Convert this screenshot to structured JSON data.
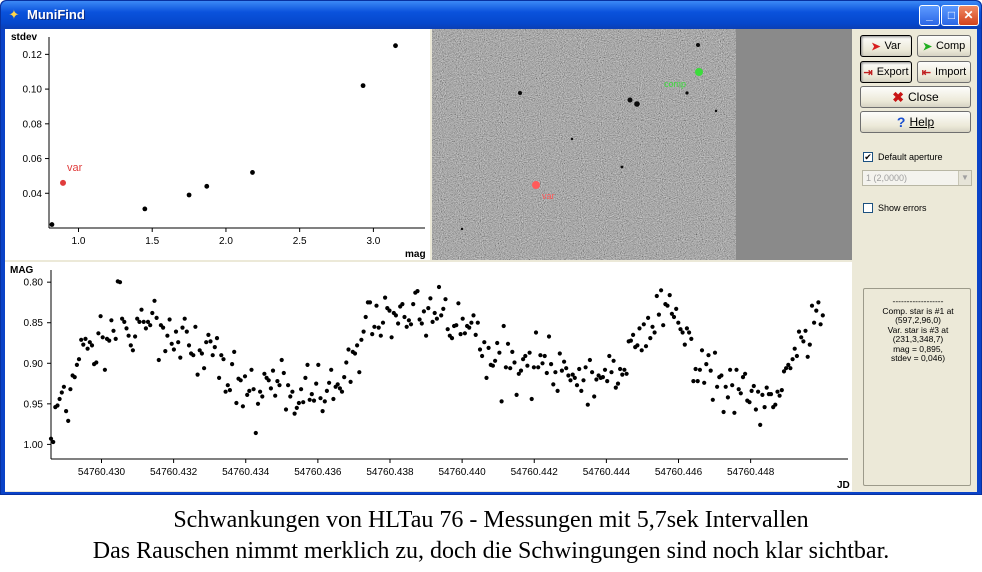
{
  "window": {
    "title": "MuniFind",
    "controls": [
      "minimize",
      "maximize",
      "close"
    ]
  },
  "scatter": {
    "ylabel": "stdev",
    "xlabel": "mag",
    "var_label": "var",
    "var_color": "#e03c3c"
  },
  "image": {
    "var_label": "var",
    "comp_label": "comp",
    "var_color": "#ff5a5a",
    "comp_color": "#3cdc3c"
  },
  "lightcurve": {
    "ylabel": "MAG",
    "xlabel": "JD"
  },
  "buttons": {
    "var": "Var",
    "comp": "Comp",
    "export": "Export",
    "import": "Import",
    "close": "Close",
    "help": "Help"
  },
  "options": {
    "default_aperture_label": "Default aperture",
    "default_aperture_checked": true,
    "aperture_value": "1 (2,0000)",
    "show_errors_label": "Show errors",
    "show_errors_checked": false
  },
  "info": {
    "text": "------------------\nComp. star is #1 at\n(597,2,96,0)\nVar. star is #3 at\n(231,3,348,7)\nmag = 0,895,\nstdev = 0,046)"
  },
  "caption": {
    "line1": "Schwankungen von HLTau 76 - Messungen mit 5,7sek Intervallen",
    "line2": "Das Rauschen nimmt merklich zu, doch die Schwingungen sind noch klar sichtbar."
  },
  "chart_data": [
    {
      "type": "scatter",
      "xlabel": "mag",
      "ylabel": "stdev",
      "x_ticks": [
        "1.0",
        "1.5",
        "2.0",
        "2.5",
        "3.0"
      ],
      "y_ticks": [
        "0.04",
        "0.06",
        "0.08",
        "0.10",
        "0.12"
      ],
      "xlim": [
        0.8,
        3.35
      ],
      "ylim": [
        0.02,
        0.13
      ],
      "points": [
        {
          "x": 0.82,
          "y": 0.022
        },
        {
          "x": 0.895,
          "y": 0.046,
          "label": "var"
        },
        {
          "x": 1.45,
          "y": 0.031
        },
        {
          "x": 1.75,
          "y": 0.039
        },
        {
          "x": 1.87,
          "y": 0.044
        },
        {
          "x": 2.18,
          "y": 0.052
        },
        {
          "x": 2.93,
          "y": 0.102
        },
        {
          "x": 3.15,
          "y": 0.125
        }
      ]
    },
    {
      "type": "scatter",
      "xlabel": "JD",
      "ylabel": "MAG",
      "x_ticks": [
        "54760.430",
        "54760.432",
        "54760.434",
        "54760.436",
        "54760.438",
        "54760.440",
        "54760.442",
        "54760.444",
        "54760.446",
        "54760.448"
      ],
      "y_ticks": [
        "0.80",
        "0.85",
        "0.90",
        "0.95",
        "1.00"
      ],
      "xlim": [
        54760.4286,
        54760.4507
      ],
      "ylim": [
        0.785,
        1.018
      ],
      "y_inverted": true,
      "jd_start": 54760.4286,
      "jd_end": 54760.45,
      "mag_series": [
        0.993,
        0.997,
        0.954,
        0.952,
        0.944,
        0.936,
        0.929,
        0.959,
        0.971,
        0.932,
        0.915,
        0.917,
        0.902,
        0.895,
        0.871,
        0.877,
        0.87,
        0.882,
        0.874,
        0.878,
        0.901,
        0.899,
        0.863,
        0.842,
        0.868,
        0.908,
        0.87,
        0.872,
        0.847,
        0.86,
        0.87,
        0.799,
        0.8,
        0.845,
        0.849,
        0.857,
        0.866,
        0.878,
        0.884,
        0.867,
        0.845,
        0.849,
        0.834,
        0.849,
        0.857,
        0.849,
        0.853,
        0.838,
        0.823,
        0.844,
        0.896,
        0.853,
        0.856,
        0.885,
        0.866,
        0.846,
        0.876,
        0.883,
        0.861,
        0.874,
        0.893,
        0.856,
        0.845,
        0.861,
        0.878,
        0.888,
        0.89,
        0.855,
        0.914,
        0.884,
        0.888,
        0.906,
        0.874,
        0.865,
        0.873,
        0.89,
        0.88,
        0.869,
        0.918,
        0.89,
        0.895,
        0.935,
        0.927,
        0.933,
        0.901,
        0.886,
        0.949,
        0.919,
        0.921,
        0.953,
        0.916,
        0.939,
        0.934,
        0.908,
        0.932,
        0.986,
        0.95,
        0.935,
        0.941,
        0.913,
        0.918,
        0.921,
        0.931,
        0.909,
        0.94,
        0.922,
        0.927,
        0.896,
        0.912,
        0.957,
        0.927,
        0.941,
        0.935,
        0.962,
        0.955,
        0.949,
        0.932,
        0.948,
        0.918,
        0.902,
        0.945,
        0.938,
        0.946,
        0.925,
        0.902,
        0.943,
        0.959,
        0.947,
        0.934,
        0.924,
        0.908,
        0.944,
        0.929,
        0.926,
        0.931,
        0.935,
        0.917,
        0.899,
        0.883,
        0.923,
        0.886,
        0.888,
        0.878,
        0.911,
        0.871,
        0.861,
        0.843,
        0.825,
        0.825,
        0.864,
        0.855,
        0.829,
        0.856,
        0.866,
        0.85,
        0.819,
        0.832,
        0.835,
        0.868,
        0.838,
        0.841,
        0.851,
        0.83,
        0.827,
        0.843,
        0.855,
        0.847,
        0.852,
        0.827,
        0.813,
        0.811,
        0.846,
        0.851,
        0.836,
        0.866,
        0.832,
        0.82,
        0.849,
        0.838,
        0.845,
        0.806,
        0.841,
        0.833,
        0.821,
        0.858,
        0.866,
        0.869,
        0.854,
        0.853,
        0.826,
        0.864,
        0.845,
        0.863,
        0.854,
        0.856,
        0.85,
        0.841,
        0.865,
        0.85,
        0.883,
        0.891,
        0.874,
        0.918,
        0.881,
        0.902,
        0.903,
        0.897,
        0.875,
        0.887,
        0.947,
        0.854,
        0.905,
        0.876,
        0.906,
        0.886,
        0.899,
        0.939,
        0.913,
        0.909,
        0.895,
        0.891,
        0.903,
        0.887,
        0.944,
        0.905,
        0.862,
        0.905,
        0.89,
        0.9,
        0.891,
        0.912,
        0.867,
        0.901,
        0.926,
        0.911,
        0.934,
        0.888,
        0.909,
        0.898,
        0.906,
        0.915,
        0.921,
        0.914,
        0.918,
        0.927,
        0.907,
        0.934,
        0.921,
        0.905,
        0.951,
        0.896,
        0.911,
        0.941,
        0.92,
        0.915,
        0.918,
        0.917,
        0.908,
        0.922,
        0.891,
        0.911,
        0.897,
        0.93,
        0.925,
        0.907,
        0.914,
        0.908,
        0.913,
        0.873,
        0.872,
        0.865,
        0.88,
        0.878,
        0.857,
        0.884,
        0.852,
        0.879,
        0.844,
        0.869,
        0.855,
        0.862,
        0.817,
        0.84,
        0.81,
        0.853,
        0.827,
        0.829,
        0.816,
        0.839,
        0.843,
        0.833,
        0.85,
        0.858,
        0.862,
        0.877,
        0.857,
        0.862,
        0.87,
        0.922,
        0.907,
        0.922,
        0.908,
        0.884,
        0.924,
        0.901,
        0.89,
        0.909,
        0.945,
        0.887,
        0.929,
        0.917,
        0.915,
        0.96,
        0.929,
        0.942,
        0.908,
        0.927,
        0.961,
        0.908,
        0.932,
        0.937,
        0.917,
        0.913,
        0.946,
        0.948,
        0.934,
        0.928,
        0.957,
        0.935,
        0.976,
        0.939,
        0.954,
        0.93,
        0.938,
        0.938,
        0.954,
        0.951,
        0.935,
        0.94,
        0.933,
        0.91,
        0.906,
        0.902,
        0.906,
        0.895,
        0.882,
        0.891,
        0.861,
        0.868,
        0.873,
        0.86,
        0.892,
        0.877,
        0.829,
        0.85,
        0.835,
        0.825,
        0.852,
        0.841
      ]
    }
  ]
}
